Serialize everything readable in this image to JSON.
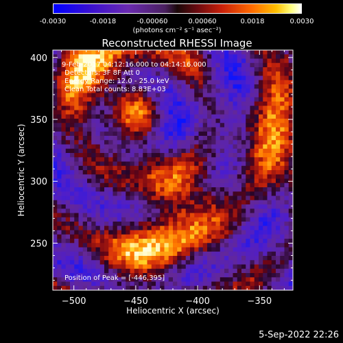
{
  "colorbar": {
    "ticks": [
      "-0.0030",
      "-0.0018",
      "-0.00060",
      "0.00060",
      "0.0018",
      "0.0030"
    ],
    "units": "(photons cm⁻² s⁻¹ asec⁻²)"
  },
  "chart_data": {
    "type": "heatmap",
    "title": "Reconstructed RHESSI Image",
    "xlabel": "Heliocentric X (arcsec)",
    "ylabel": "Heliocentric Y (arcsec)",
    "xlim": [
      -517,
      -323
    ],
    "ylim": [
      212,
      406
    ],
    "x_ticks": [
      -500,
      -450,
      -400,
      -350
    ],
    "y_ticks": [
      250,
      300,
      350,
      400
    ],
    "x_tick_labels": [
      "−500",
      "−450",
      "−400",
      "−350"
    ],
    "y_tick_labels": [
      "250",
      "300",
      "350",
      "400"
    ],
    "color_range": [
      -0.003,
      0.003
    ],
    "annotations": [
      "9-Feb-2017 04:12:16.000 to 04:14:16.000",
      "Detectors: 3F 8F  Att 0",
      "Energy Range: 12.0 - 25.0 keV",
      "Clean    Total counts: 8.83E+03"
    ],
    "peak_text": "Position of Peak = [-446,395]"
  },
  "footer": {
    "date": "5-Sep-2022 22:26"
  }
}
